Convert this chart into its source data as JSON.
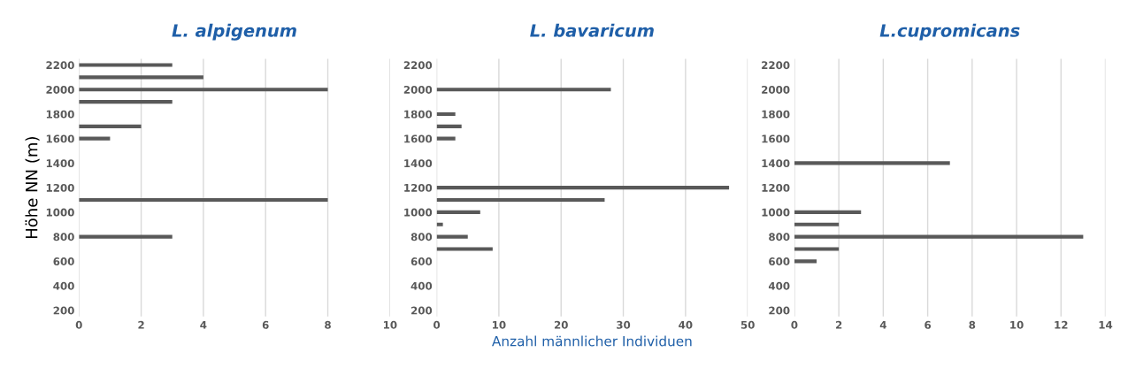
{
  "chart_data": [
    {
      "type": "bar",
      "orientation": "horizontal",
      "title": "L. alpigenum",
      "ylabel": "Höhe NN (m)",
      "color": "#595959",
      "x": [
        2200,
        2100,
        2000,
        1900,
        1700,
        1600,
        1100,
        800
      ],
      "values": [
        3,
        4,
        8,
        3,
        2,
        1,
        8,
        3
      ],
      "xlim": [
        0,
        10
      ],
      "xticks": [
        0,
        2,
        4,
        6,
        8,
        10
      ],
      "ylim": [
        150,
        2250
      ],
      "yticks": [
        200,
        400,
        600,
        800,
        1000,
        1200,
        1400,
        1600,
        1800,
        2000,
        2200
      ],
      "grid": "x"
    },
    {
      "type": "bar",
      "orientation": "horizontal",
      "title": "L. bavaricum",
      "xlabel": "Anzahl männlicher Individuen",
      "color": "#595959",
      "x": [
        2000,
        1800,
        1700,
        1600,
        1200,
        1100,
        1000,
        900,
        800,
        700
      ],
      "values": [
        28,
        3,
        4,
        3,
        47,
        27,
        7,
        1,
        5,
        9
      ],
      "xlim": [
        0,
        50
      ],
      "xticks": [
        0,
        10,
        20,
        30,
        40,
        50
      ],
      "ylim": [
        150,
        2250
      ],
      "yticks": [
        200,
        400,
        600,
        800,
        1000,
        1200,
        1400,
        1600,
        1800,
        2000,
        2200
      ],
      "grid": "x"
    },
    {
      "type": "bar",
      "orientation": "horizontal",
      "title": "L.cupromicans",
      "color": "#595959",
      "x": [
        1400,
        1000,
        900,
        800,
        700,
        600
      ],
      "values": [
        7,
        3,
        2,
        13,
        2,
        1
      ],
      "xlim": [
        0,
        14
      ],
      "xticks": [
        0,
        2,
        4,
        6,
        8,
        10,
        12,
        14
      ],
      "ylim": [
        150,
        2250
      ],
      "yticks": [
        200,
        400,
        600,
        800,
        1000,
        1200,
        1400,
        1600,
        1800,
        2000,
        2200
      ],
      "grid": "x"
    }
  ]
}
